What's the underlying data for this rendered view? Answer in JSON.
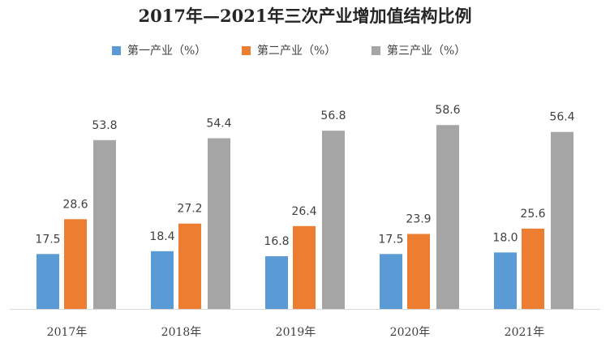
{
  "chart_data": {
    "type": "bar",
    "title": "2017年—2021年三次产业增加值结构比例",
    "categories": [
      "2017年",
      "2018年",
      "2019年",
      "2020年",
      "2021年"
    ],
    "series": [
      {
        "name": "第一产业（%）",
        "color": "#5B9BD5",
        "values": [
          17.5,
          18.4,
          16.8,
          17.5,
          18.0
        ]
      },
      {
        "name": "第二产业（%）",
        "color": "#ED7D31",
        "values": [
          28.6,
          27.2,
          26.4,
          23.9,
          25.6
        ]
      },
      {
        "name": "第三产业（%）",
        "color": "#A5A5A5",
        "values": [
          53.8,
          54.4,
          56.8,
          58.6,
          56.4
        ]
      }
    ],
    "data_labels": [
      [
        "17.5",
        "18.4",
        "16.8",
        "17.5",
        "18.0"
      ],
      [
        "28.6",
        "27.2",
        "26.4",
        "23.9",
        "25.6"
      ],
      [
        "53.8",
        "54.4",
        "56.8",
        "58.6",
        "56.4"
      ]
    ],
    "ylim": [
      0,
      70
    ],
    "grid": false,
    "legend_position": "top",
    "xlabel": "",
    "ylabel": ""
  }
}
